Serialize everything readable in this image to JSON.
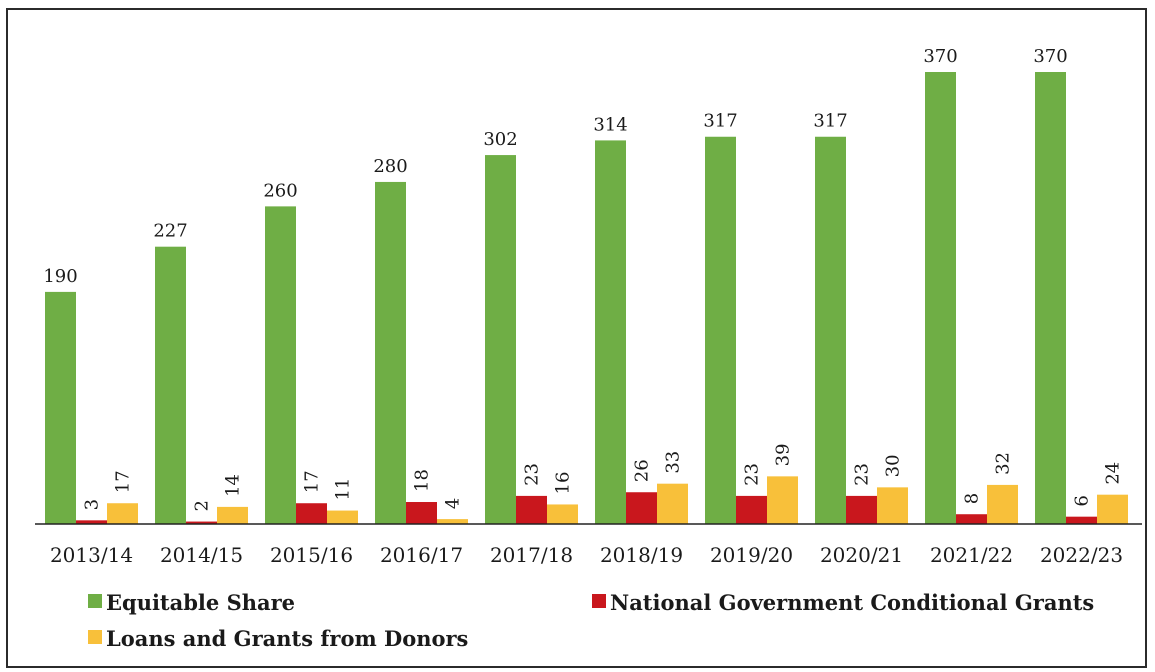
{
  "chart_data": {
    "type": "bar",
    "title": "",
    "xlabel": "",
    "ylabel": "",
    "categories": [
      "2013/14",
      "2014/15",
      "2015/16",
      "2016/17",
      "2017/18",
      "2018/19",
      "2019/20",
      "2020/21",
      "2021/22",
      "2022/23"
    ],
    "series": [
      {
        "name": "Equitable Share",
        "color": "#6fae45",
        "values": [
          190,
          227,
          260,
          280,
          302,
          314,
          317,
          317,
          370,
          370
        ]
      },
      {
        "name": "National Government Conditional Grants",
        "color": "#c9171d",
        "values": [
          3,
          2,
          17,
          18,
          23,
          26,
          23,
          23,
          8,
          6
        ]
      },
      {
        "name": "Loans and Grants from Donors",
        "color": "#f8c03a",
        "values": [
          17,
          14,
          11,
          4,
          16,
          33,
          39,
          30,
          32,
          24
        ]
      }
    ],
    "ylim": [
      0,
      370
    ],
    "grid": false,
    "legend_position": "bottom"
  }
}
